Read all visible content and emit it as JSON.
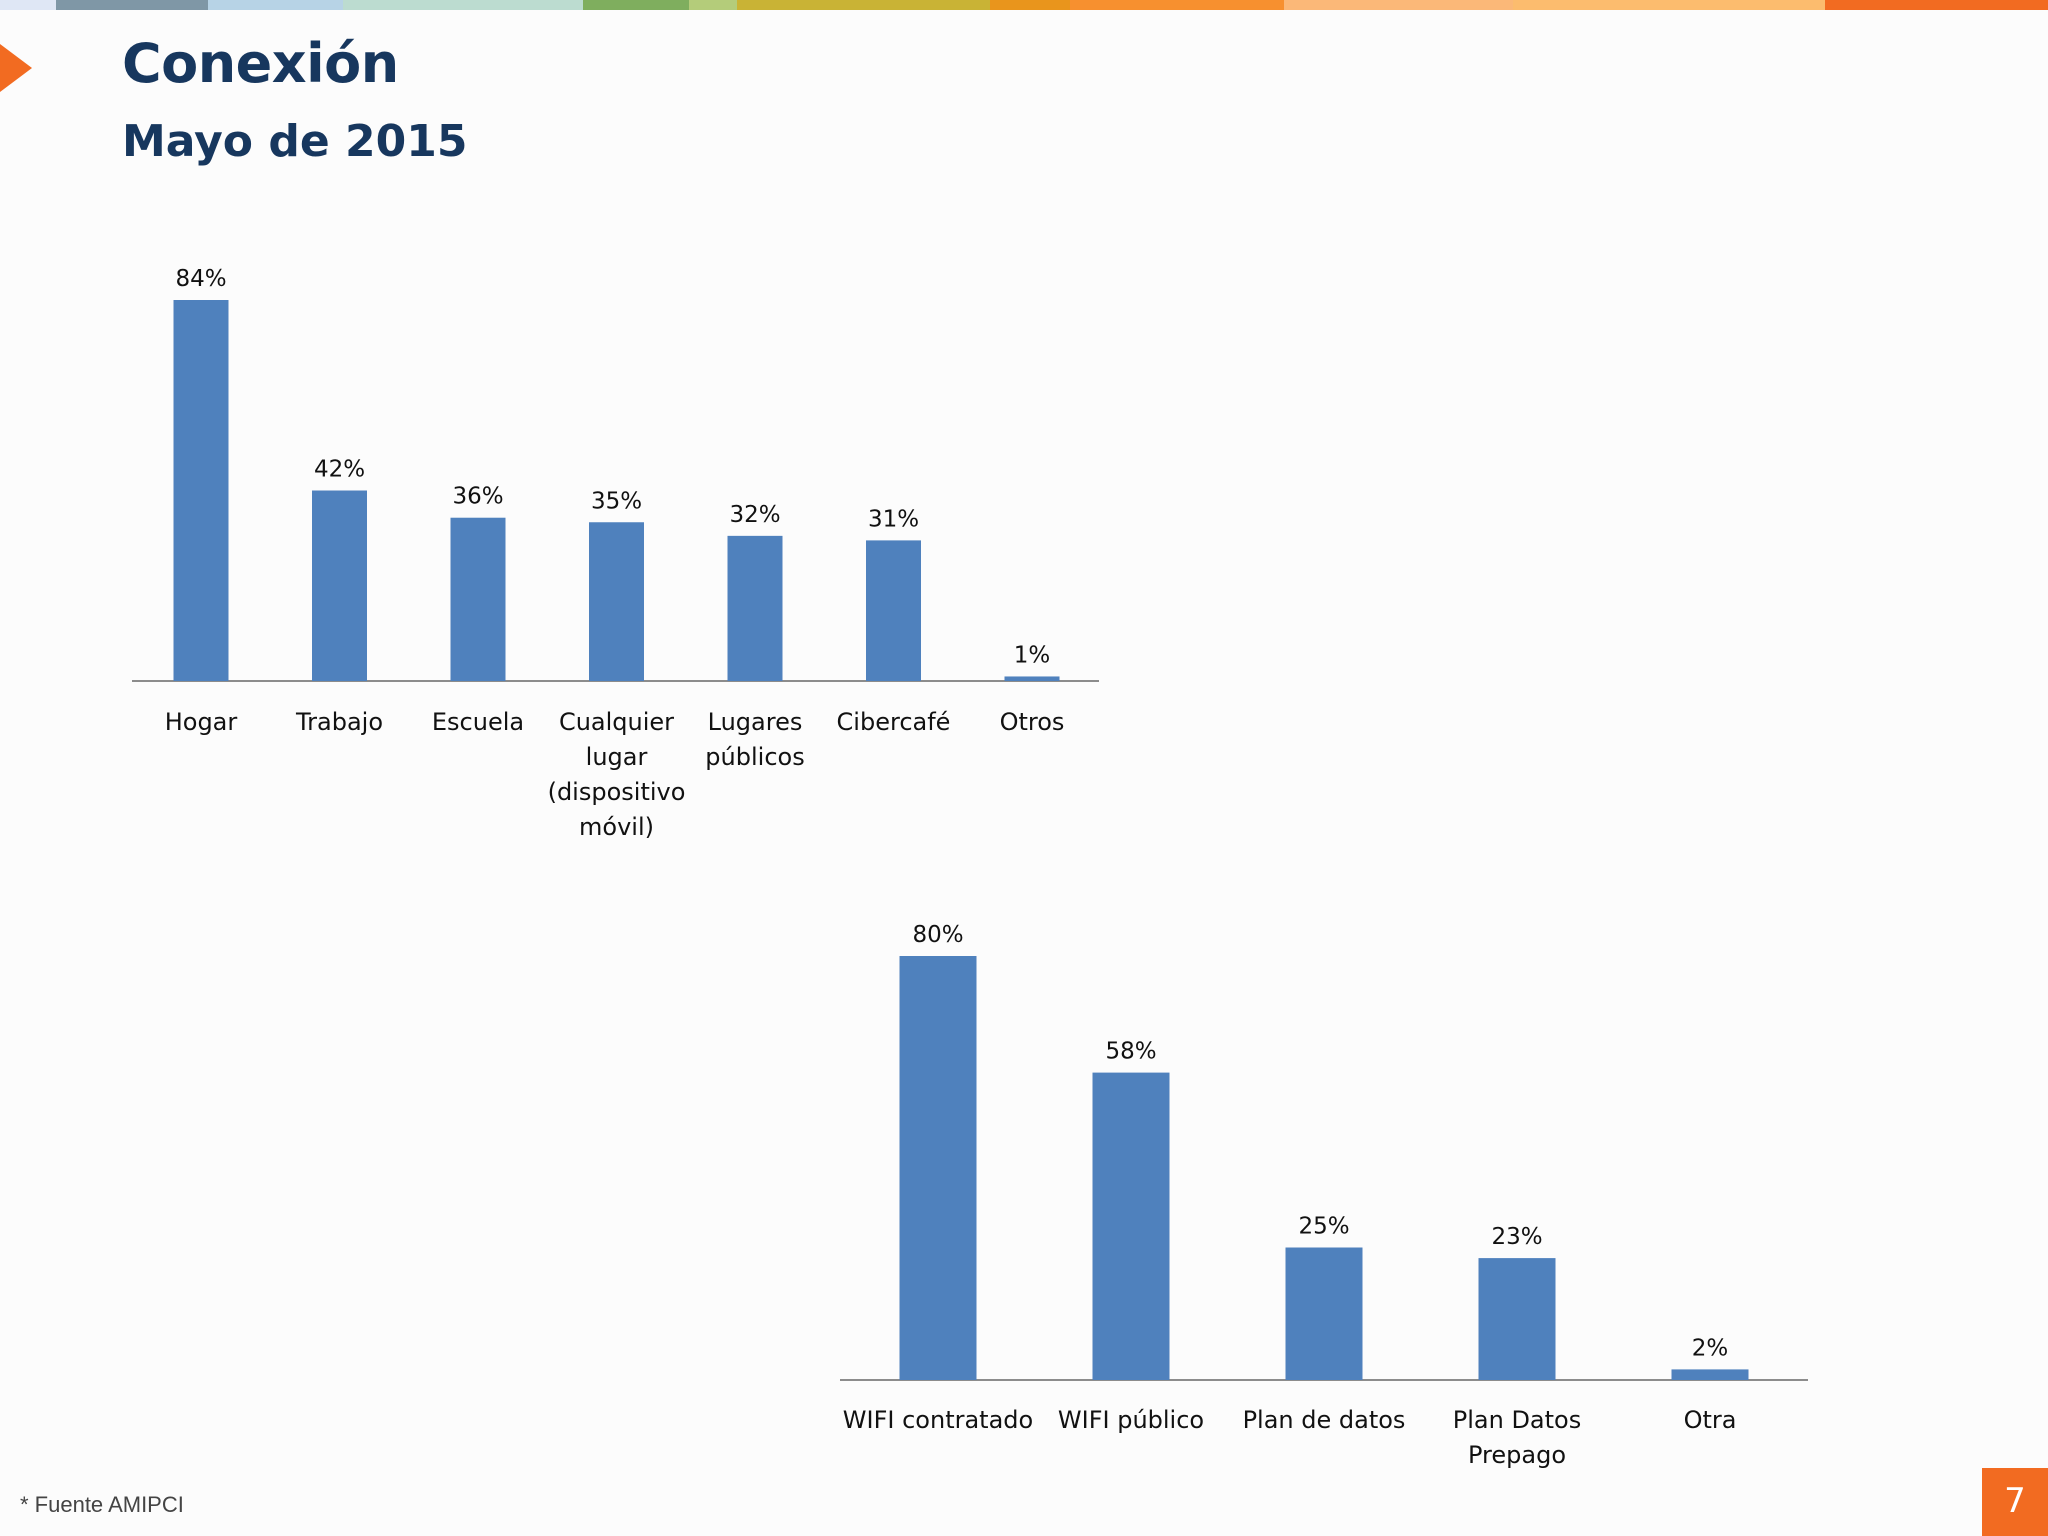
{
  "slide": {
    "title": "Conexión",
    "subtitle": "Mayo de 2015",
    "source": "* Fuente AMIPCI",
    "page_number": "7"
  },
  "colors": {
    "bar": "#4f81bd",
    "title": "#17375e",
    "accent": "#f26b21",
    "axis": "#8c8c8c",
    "top_bar": [
      "#dfe7f5",
      "#7f97a6",
      "#b7d3e6",
      "#bcdcd0",
      "#7fae5e",
      "#b4cc7a",
      "#c9b335",
      "#e9951c",
      "#f7902f",
      "#fbb878",
      "#fcbc6e",
      "#f26b21"
    ]
  },
  "chart_data": [
    {
      "type": "bar",
      "title": "",
      "xlabel": "",
      "ylabel": "",
      "ylim": [
        0,
        84
      ],
      "categories": [
        [
          "Hogar"
        ],
        [
          "Trabajo"
        ],
        [
          "Escuela"
        ],
        [
          "Cualquier",
          "lugar",
          "(dispositivo",
          "móvil)"
        ],
        [
          "Lugares",
          "públicos"
        ],
        [
          "Cibercafé"
        ],
        [
          "Otros"
        ]
      ],
      "values": [
        84,
        42,
        36,
        35,
        32,
        31,
        1
      ],
      "data_labels": [
        "84%",
        "42%",
        "36%",
        "35%",
        "32%",
        "31%",
        "1%"
      ],
      "grid": false,
      "legend": "none"
    },
    {
      "type": "bar",
      "title": "",
      "xlabel": "",
      "ylabel": "",
      "ylim": [
        0,
        80
      ],
      "categories": [
        [
          "WIFI contratado"
        ],
        [
          "WIFI público"
        ],
        [
          "Plan de datos"
        ],
        [
          "Plan Datos",
          "Prepago"
        ],
        [
          "Otra"
        ]
      ],
      "values": [
        80,
        58,
        25,
        23,
        2
      ],
      "data_labels": [
        "80%",
        "58%",
        "25%",
        "23%",
        "2%"
      ],
      "grid": false,
      "legend": "none"
    }
  ]
}
